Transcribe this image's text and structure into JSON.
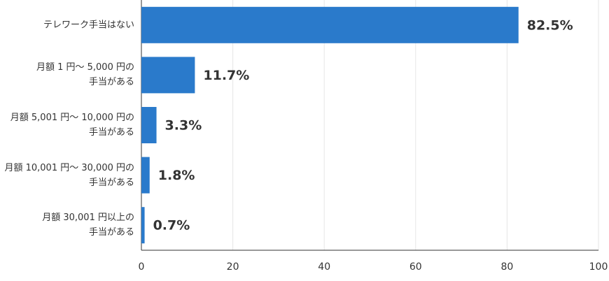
{
  "chart_data": {
    "type": "bar",
    "orientation": "horizontal",
    "categories": [
      "テレワーク手当はない",
      "月額 1 円～ 5,000 円の\n手当がある",
      "月額 5,001 円～ 10,000 円の\n手当がある",
      "月額 10,001 円～ 30,000 円の\n手当がある",
      "月額 30,001 円以上の\n手当がある"
    ],
    "values": [
      82.5,
      11.7,
      3.3,
      1.8,
      0.7
    ],
    "value_labels": [
      "82.5%",
      "11.7%",
      "3.3%",
      "1.8%",
      "0.7%"
    ],
    "color": "#2a7acb",
    "xlim": [
      0,
      100
    ],
    "xticks": [
      0,
      20,
      40,
      60,
      80,
      100
    ],
    "grid": true
  }
}
